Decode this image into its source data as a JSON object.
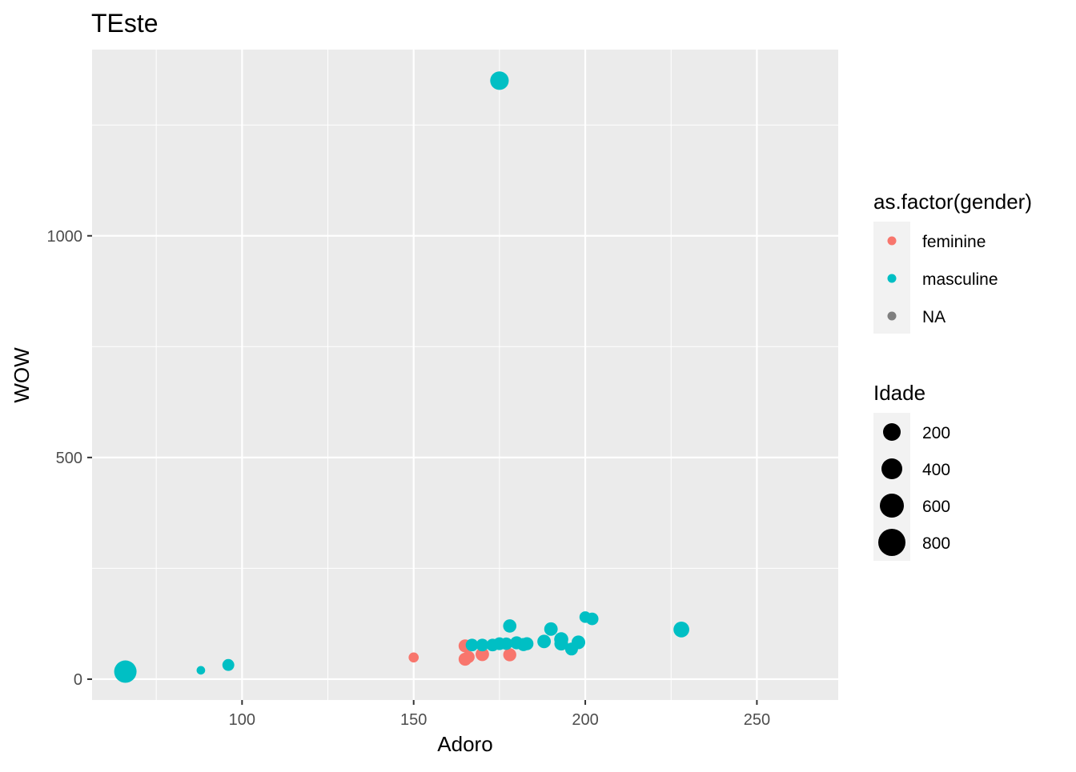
{
  "chart_data": {
    "type": "scatter",
    "title": "TEste",
    "xlabel": "Adoro",
    "ylabel": "WOW",
    "xlim": [
      56.3,
      273.7
    ],
    "ylim": [
      -47,
      1420
    ],
    "x_ticks": [
      100,
      150,
      200,
      250
    ],
    "x_tick_labels": [
      "100",
      "150",
      "200",
      "250"
    ],
    "y_ticks": [
      0,
      500,
      1000
    ],
    "y_tick_labels": [
      "0",
      "500",
      "1000"
    ],
    "grid": true,
    "legend_position": "right",
    "color_legend": {
      "title": "as.factor(gender)",
      "entries": [
        {
          "label": "feminine",
          "color": "#F8766D"
        },
        {
          "label": "masculine",
          "color": "#00BFC4"
        },
        {
          "label": "NA",
          "color": "#7F7F7F"
        }
      ]
    },
    "size_legend": {
      "title": "Idade",
      "entries": [
        {
          "label": "200",
          "value": 200
        },
        {
          "label": "400",
          "value": 400
        },
        {
          "label": "600",
          "value": 600
        },
        {
          "label": "800",
          "value": 800
        }
      ]
    },
    "series": [
      {
        "name": "feminine",
        "color": "#F8766D",
        "points": [
          {
            "x": 150,
            "y": 49,
            "size": 60
          },
          {
            "x": 165,
            "y": 75,
            "size": 170
          },
          {
            "x": 165,
            "y": 45,
            "size": 170
          },
          {
            "x": 166,
            "y": 50,
            "size": 130
          },
          {
            "x": 170,
            "y": 56,
            "size": 190
          },
          {
            "x": 178,
            "y": 55,
            "size": 170
          }
        ]
      },
      {
        "name": "masculine",
        "color": "#00BFC4",
        "points": [
          {
            "x": 66,
            "y": 17,
            "size": 880
          },
          {
            "x": 88,
            "y": 20,
            "size": 25
          },
          {
            "x": 96,
            "y": 32,
            "size": 120
          },
          {
            "x": 167,
            "y": 77,
            "size": 150
          },
          {
            "x": 170,
            "y": 77,
            "size": 150
          },
          {
            "x": 173,
            "y": 77,
            "size": 150
          },
          {
            "x": 175,
            "y": 80,
            "size": 160
          },
          {
            "x": 175,
            "y": 1350,
            "size": 520
          },
          {
            "x": 177,
            "y": 80,
            "size": 140
          },
          {
            "x": 178,
            "y": 120,
            "size": 180
          },
          {
            "x": 180,
            "y": 82,
            "size": 170
          },
          {
            "x": 182,
            "y": 78,
            "size": 170
          },
          {
            "x": 183,
            "y": 80,
            "size": 170
          },
          {
            "x": 188,
            "y": 85,
            "size": 190
          },
          {
            "x": 190,
            "y": 113,
            "size": 190
          },
          {
            "x": 193,
            "y": 90,
            "size": 220
          },
          {
            "x": 193,
            "y": 80,
            "size": 200
          },
          {
            "x": 196,
            "y": 68,
            "size": 160
          },
          {
            "x": 198,
            "y": 83,
            "size": 200
          },
          {
            "x": 200,
            "y": 140,
            "size": 110
          },
          {
            "x": 202,
            "y": 136,
            "size": 150
          },
          {
            "x": 228,
            "y": 112,
            "size": 320
          }
        ]
      }
    ]
  }
}
